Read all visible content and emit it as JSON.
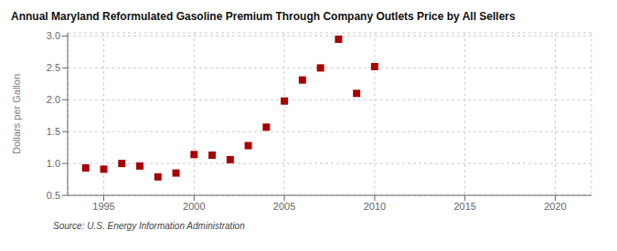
{
  "chart_data": {
    "type": "scatter",
    "title": "Annual Maryland Reformulated Gasoline Premium Through Company Outlets Price by All Sellers",
    "ylabel": "Dollars per Gallon",
    "annotations": [
      "Source: U.S. Energy Information Administration"
    ],
    "x": [
      1994,
      1995,
      1996,
      1997,
      1998,
      1999,
      2000,
      2001,
      2002,
      2003,
      2004,
      2005,
      2006,
      2007,
      2008,
      2009,
      2010
    ],
    "values": [
      0.93,
      0.91,
      1.0,
      0.96,
      0.79,
      0.85,
      1.14,
      1.13,
      1.06,
      1.28,
      1.57,
      1.98,
      2.31,
      2.5,
      2.95,
      2.1,
      2.52
    ],
    "color": "#aa0000",
    "marker": "square",
    "xlim": [
      1993,
      2022
    ],
    "ylim": [
      0.5,
      3.05
    ],
    "xticks": [
      1995,
      2000,
      2005,
      2010,
      2015,
      2020
    ],
    "yticks": [
      0.5,
      {
        "value": 1,
        "label": "1.0"
      },
      1.5,
      {
        "value": 2,
        "label": "2.0"
      },
      2.5,
      {
        "value": 3,
        "label": "3.0"
      }
    ],
    "grid": true
  }
}
